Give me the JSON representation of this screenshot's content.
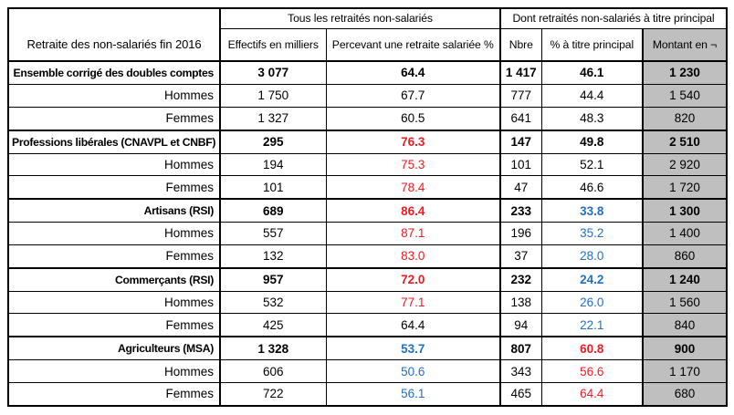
{
  "colors": {
    "red": "#ed1c24",
    "blue": "#2470c2",
    "gray_fill": "#bfbfbf",
    "border": "#000000"
  },
  "table": {
    "corner_header": "Retraite des non-salariés fin 2016",
    "group_headers": [
      {
        "label": "Tous les retraités non-salariés",
        "span": 2
      },
      {
        "label": "Dont retraités non-salariés à titre principal",
        "span": 3
      }
    ],
    "column_headers": [
      "Effectifs en milliers",
      "Percevant une retraite salariée %",
      "Nbre",
      "% à titre principal",
      "Montant en ¬"
    ],
    "rows": [
      {
        "label": "Ensemble corrigé des doubles comptes",
        "bold": true,
        "cells": [
          {
            "v": "3 077"
          },
          {
            "v": "64.4"
          },
          {
            "v": "1 417"
          },
          {
            "v": "46.1"
          },
          {
            "v": "1 230"
          }
        ]
      },
      {
        "label": "Hommes",
        "bold": false,
        "cells": [
          {
            "v": "1 750"
          },
          {
            "v": "67.7"
          },
          {
            "v": "777"
          },
          {
            "v": "44.4"
          },
          {
            "v": "1 540"
          }
        ]
      },
      {
        "label": "Femmes",
        "bold": false,
        "cells": [
          {
            "v": "1 327"
          },
          {
            "v": "60.5"
          },
          {
            "v": "641"
          },
          {
            "v": "48.3"
          },
          {
            "v": "820"
          }
        ]
      },
      {
        "label": "Professions libérales (CNAVPL et CNBF)",
        "bold": true,
        "cells": [
          {
            "v": "295"
          },
          {
            "v": "76.3",
            "c": "red"
          },
          {
            "v": "147"
          },
          {
            "v": "49.8"
          },
          {
            "v": "2 510"
          }
        ]
      },
      {
        "label": "Hommes",
        "bold": false,
        "cells": [
          {
            "v": "194"
          },
          {
            "v": "75.3",
            "c": "red"
          },
          {
            "v": "101"
          },
          {
            "v": "52.1"
          },
          {
            "v": "2 920"
          }
        ]
      },
      {
        "label": "Femmes",
        "bold": false,
        "cells": [
          {
            "v": "101"
          },
          {
            "v": "78.4",
            "c": "red"
          },
          {
            "v": "47"
          },
          {
            "v": "46.6"
          },
          {
            "v": "1 720"
          }
        ]
      },
      {
        "label": "Artisans (RSI)",
        "bold": true,
        "cells": [
          {
            "v": "689"
          },
          {
            "v": "86.4",
            "c": "red"
          },
          {
            "v": "233"
          },
          {
            "v": "33.8",
            "c": "blue"
          },
          {
            "v": "1 300"
          }
        ]
      },
      {
        "label": "Hommes",
        "bold": false,
        "cells": [
          {
            "v": "557"
          },
          {
            "v": "87.1",
            "c": "red"
          },
          {
            "v": "196"
          },
          {
            "v": "35.2",
            "c": "blue"
          },
          {
            "v": "1 400"
          }
        ]
      },
      {
        "label": "Femmes",
        "bold": false,
        "cells": [
          {
            "v": "132"
          },
          {
            "v": "83.0",
            "c": "red"
          },
          {
            "v": "37"
          },
          {
            "v": "28.0",
            "c": "blue"
          },
          {
            "v": "860"
          }
        ]
      },
      {
        "label": "Commerçants (RSI)",
        "bold": true,
        "cells": [
          {
            "v": "957"
          },
          {
            "v": "72.0",
            "c": "red"
          },
          {
            "v": "232"
          },
          {
            "v": "24.2",
            "c": "blue"
          },
          {
            "v": "1 240"
          }
        ]
      },
      {
        "label": "Hommes",
        "bold": false,
        "cells": [
          {
            "v": "532"
          },
          {
            "v": "77.1",
            "c": "red"
          },
          {
            "v": "138"
          },
          {
            "v": "26.0",
            "c": "blue"
          },
          {
            "v": "1 560"
          }
        ]
      },
      {
        "label": "Femmes",
        "bold": false,
        "cells": [
          {
            "v": "425"
          },
          {
            "v": "64.4"
          },
          {
            "v": "94"
          },
          {
            "v": "22.1",
            "c": "blue"
          },
          {
            "v": "840"
          }
        ]
      },
      {
        "label": "Agriculteurs (MSA)",
        "bold": true,
        "cells": [
          {
            "v": "1 328"
          },
          {
            "v": "53.7",
            "c": "blue"
          },
          {
            "v": "807"
          },
          {
            "v": "60.8",
            "c": "red"
          },
          {
            "v": "900"
          }
        ]
      },
      {
        "label": "Hommes",
        "bold": false,
        "cells": [
          {
            "v": "606"
          },
          {
            "v": "50.6",
            "c": "blue"
          },
          {
            "v": "343"
          },
          {
            "v": "56.6",
            "c": "red"
          },
          {
            "v": "1 170"
          }
        ]
      },
      {
        "label": "Femmes",
        "bold": false,
        "cells": [
          {
            "v": "722"
          },
          {
            "v": "56.1",
            "c": "blue"
          },
          {
            "v": "465"
          },
          {
            "v": "64.4",
            "c": "red"
          },
          {
            "v": "680"
          }
        ]
      }
    ]
  },
  "chart_data": {
    "type": "table",
    "title": "Retraite des non-salariés fin 2016",
    "column_groups": [
      {
        "label": "Tous les retraités non-salariés",
        "columns": [
          1,
          2
        ]
      },
      {
        "label": "Dont retraités non-salariés à titre principal",
        "columns": [
          3,
          4,
          5
        ]
      }
    ],
    "columns": [
      "Retraite des non-salariés fin 2016",
      "Effectifs en milliers",
      "Percevant une retraite salariée %",
      "Nbre",
      "% à titre principal",
      "Montant en ¬"
    ],
    "rows": [
      [
        "Ensemble corrigé des doubles comptes",
        3077,
        64.4,
        1417,
        46.1,
        1230
      ],
      [
        "Hommes",
        1750,
        67.7,
        777,
        44.4,
        1540
      ],
      [
        "Femmes",
        1327,
        60.5,
        641,
        48.3,
        820
      ],
      [
        "Professions libérales (CNAVPL et CNBF)",
        295,
        76.3,
        147,
        49.8,
        2510
      ],
      [
        "Hommes",
        194,
        75.3,
        101,
        52.1,
        2920
      ],
      [
        "Femmes",
        101,
        78.4,
        47,
        46.6,
        1720
      ],
      [
        "Artisans (RSI)",
        689,
        86.4,
        233,
        33.8,
        1300
      ],
      [
        "Hommes",
        557,
        87.1,
        196,
        35.2,
        1400
      ],
      [
        "Femmes",
        132,
        83.0,
        37,
        28.0,
        860
      ],
      [
        "Commerçants (RSI)",
        957,
        72.0,
        232,
        24.2,
        1240
      ],
      [
        "Hommes",
        532,
        77.1,
        138,
        26.0,
        1560
      ],
      [
        "Femmes",
        425,
        64.4,
        94,
        22.1,
        840
      ],
      [
        "Agriculteurs (MSA)",
        1328,
        53.7,
        807,
        60.8,
        900
      ],
      [
        "Hommes",
        606,
        50.6,
        343,
        56.6,
        1170
      ],
      [
        "Femmes",
        722,
        56.1,
        465,
        64.4,
        680
      ]
    ]
  }
}
